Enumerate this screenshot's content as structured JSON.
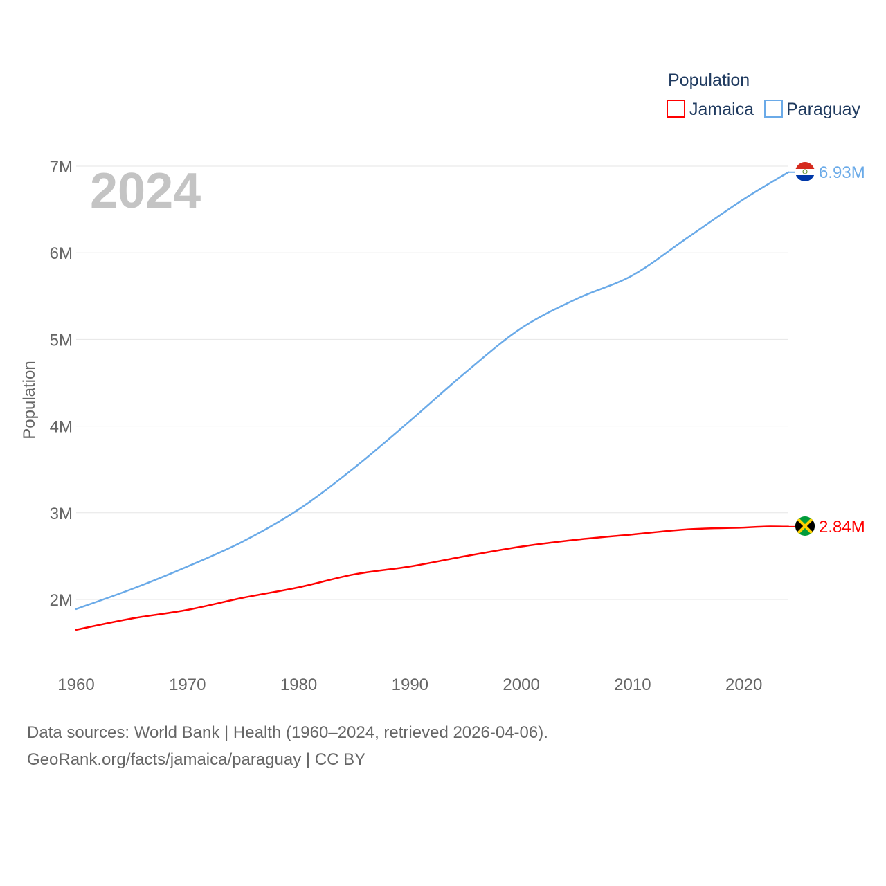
{
  "chart_data": {
    "type": "line",
    "current_year": "2024",
    "ylabel": "Population",
    "ylim": [
      1300000,
      7000000
    ],
    "xlim": [
      1960,
      2024
    ],
    "x_ticks": [
      1960,
      1970,
      1980,
      1990,
      2000,
      2010,
      2020
    ],
    "x_tick_labels": [
      "1960",
      "1970",
      "1980",
      "1990",
      "2000",
      "2010",
      "2020"
    ],
    "y_ticks": [
      2000000,
      3000000,
      4000000,
      5000000,
      6000000,
      7000000
    ],
    "y_tick_labels": [
      "2M",
      "3M",
      "4M",
      "5M",
      "6M",
      "7M"
    ],
    "legend": {
      "title": "Population",
      "position": "top-right",
      "items": [
        "Jamaica",
        "Paraguay"
      ]
    },
    "series": [
      {
        "name": "Jamaica",
        "color": "#ff0000",
        "end_label": "2.84M",
        "flag": "jamaica-flag",
        "points": [
          [
            1960,
            1650000
          ],
          [
            1965,
            1780000
          ],
          [
            1970,
            1880000
          ],
          [
            1975,
            2020000
          ],
          [
            1980,
            2140000
          ],
          [
            1985,
            2290000
          ],
          [
            1990,
            2380000
          ],
          [
            1995,
            2500000
          ],
          [
            2000,
            2610000
          ],
          [
            2005,
            2690000
          ],
          [
            2010,
            2750000
          ],
          [
            2015,
            2810000
          ],
          [
            2020,
            2830000
          ],
          [
            2022,
            2842000
          ],
          [
            2024,
            2840000
          ]
        ]
      },
      {
        "name": "Paraguay",
        "color": "#6aaae8",
        "end_label": "6.93M",
        "flag": "paraguay-flag",
        "points": [
          [
            1960,
            1890000
          ],
          [
            1965,
            2120000
          ],
          [
            1970,
            2380000
          ],
          [
            1975,
            2670000
          ],
          [
            1980,
            3040000
          ],
          [
            1985,
            3520000
          ],
          [
            1990,
            4060000
          ],
          [
            1995,
            4620000
          ],
          [
            2000,
            5130000
          ],
          [
            2005,
            5470000
          ],
          [
            2010,
            5740000
          ],
          [
            2015,
            6180000
          ],
          [
            2020,
            6620000
          ],
          [
            2024,
            6930000
          ]
        ]
      }
    ]
  },
  "footer": {
    "line1": "Data sources: World Bank | Health (1960–2024, retrieved 2026-04-06).",
    "line2": "GeoRank.org/facts/jamaica/paraguay | CC BY"
  }
}
